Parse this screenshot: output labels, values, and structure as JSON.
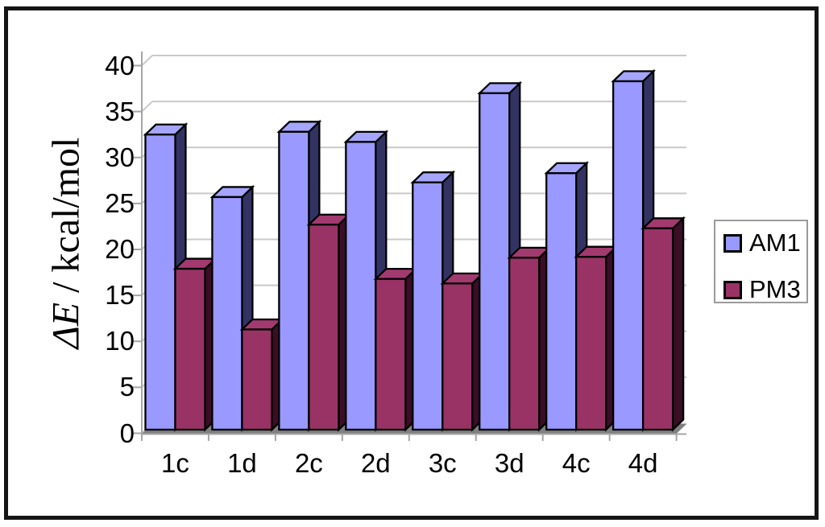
{
  "colors": {
    "frame": "#151515",
    "background": "#ffffff",
    "gridline": "#c9c9c9",
    "axis_line": "#a5a5a5",
    "floor": "#808080",
    "bar_outline": "#000000",
    "text": "#000000",
    "legend_border": "#9a9a9a",
    "am1_front": "#9999ff",
    "am1_top": "#a5a5fb",
    "am1_side": "#333363",
    "pm3_front": "#993366",
    "pm3_top": "#a23a70",
    "pm3_side": "#3a0e24"
  },
  "chart_data": {
    "type": "bar",
    "effect": "3d-columns",
    "title": "",
    "ylabel_symbol": "ΔE",
    "ylabel_rest": " / kcal/mol",
    "xlabel": "",
    "categories": [
      "1c",
      "1d",
      "2c",
      "2d",
      "3c",
      "3d",
      "4c",
      "4d"
    ],
    "series": [
      {
        "name": "AM1",
        "values": [
          32.1,
          25.3,
          32.4,
          31.3,
          26.9,
          36.6,
          27.9,
          37.9
        ],
        "front": "#9999ff",
        "top": "#a5a5fb",
        "side": "#333363"
      },
      {
        "name": "PM3",
        "values": [
          17.5,
          10.9,
          22.3,
          16.4,
          15.9,
          18.7,
          18.8,
          21.9
        ],
        "front": "#993366",
        "top": "#a23a70",
        "side": "#3a0e24"
      }
    ],
    "yticks": [
      0,
      5,
      10,
      15,
      20,
      25,
      30,
      35,
      40
    ],
    "ylim": [
      0,
      40
    ],
    "grid": true,
    "legend_position": "right"
  }
}
